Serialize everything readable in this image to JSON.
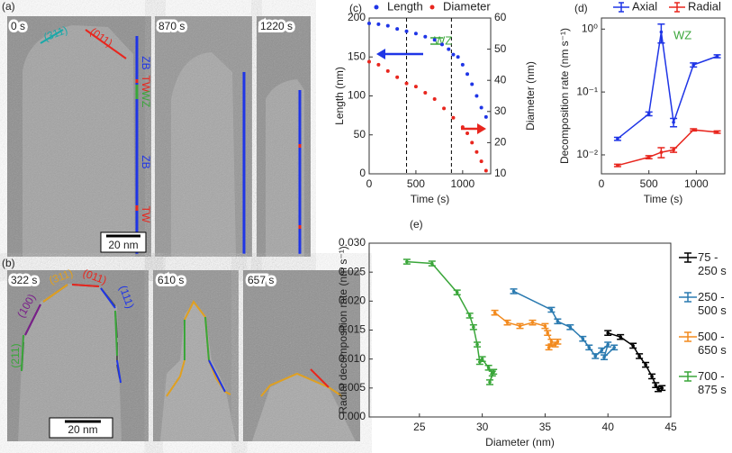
{
  "images": {
    "panels": [
      "(a)",
      "(b)"
    ],
    "frames": [
      "0 s",
      "870 s",
      "1220 s",
      "322 s",
      "610 s",
      "657 s"
    ],
    "scale_bars": [
      "20 nm",
      "20 nm"
    ],
    "facets_a": [
      "(311)",
      "(011)"
    ],
    "facets_b": [
      "(100)",
      "(311)",
      "(011)",
      "(111)",
      "(211)"
    ],
    "phases": [
      "ZB",
      "TW",
      "WZ",
      "ZB",
      "TW"
    ]
  },
  "chart_data": [
    {
      "type": "scatter",
      "label": "(c)",
      "xlabel": "Time (s)",
      "ylabel": "Length (nm)",
      "y2label": "Diameter (nm)",
      "xlim": [
        0,
        1300
      ],
      "xticks": [
        0,
        500,
        1000
      ],
      "ylim": [
        0,
        200
      ],
      "yticks": [
        0,
        50,
        100,
        150,
        200
      ],
      "y2lim": [
        10,
        60
      ],
      "y2ticks": [
        10,
        20,
        30,
        40,
        50,
        60
      ],
      "vlines": [
        400,
        880
      ],
      "annotations": [
        "WZ"
      ],
      "legend": "top",
      "series": [
        {
          "name": "Length",
          "color": "#1f35e6",
          "x": [
            0,
            100,
            200,
            300,
            400,
            500,
            600,
            700,
            780,
            850,
            900,
            950,
            1000,
            1050,
            1100,
            1150,
            1200,
            1250
          ],
          "values": [
            193,
            192,
            190,
            186,
            183,
            180,
            176,
            172,
            166,
            160,
            153,
            150,
            140,
            128,
            115,
            100,
            85,
            73
          ]
        },
        {
          "name": "Diameter",
          "color": "#e8261e",
          "axis": "y2",
          "x": [
            0,
            100,
            200,
            300,
            400,
            500,
            600,
            700,
            800,
            900,
            1000,
            1050,
            1100,
            1150,
            1200,
            1250
          ],
          "values": [
            46,
            45,
            43,
            41,
            39,
            38,
            36,
            34,
            31,
            28,
            25,
            23,
            20,
            17,
            14,
            11
          ]
        }
      ]
    },
    {
      "type": "line",
      "label": "(d)",
      "xlabel": "Time (s)",
      "ylabel": "Decomposition rate (nm s⁻¹)",
      "log": true,
      "xlim": [
        0,
        1300
      ],
      "xticks": [
        0,
        500,
        1000
      ],
      "ylim": [
        0.005,
        1.5
      ],
      "yticks": [
        {
          "value": 0.01,
          "label": "10⁻²"
        },
        {
          "value": 0.1,
          "label": "10⁻¹"
        },
        {
          "value": 1,
          "label": "10⁰"
        }
      ],
      "annotations": [
        "WZ"
      ],
      "legend": "top",
      "series": [
        {
          "name": "Axial",
          "color": "#1f35e6",
          "x": [
            170,
            500,
            630,
            760,
            970,
            1220
          ],
          "values": [
            0.018,
            0.045,
            0.9,
            0.033,
            0.27,
            0.37
          ],
          "errors": [
            0.001,
            0.003,
            0.3,
            0.005,
            0.02,
            0.02
          ]
        },
        {
          "name": "Radial",
          "color": "#e8261e",
          "x": [
            170,
            500,
            630,
            760,
            970,
            1220
          ],
          "values": [
            0.0068,
            0.0092,
            0.011,
            0.012,
            0.025,
            0.023
          ],
          "errors": [
            0.0003,
            0.0005,
            0.002,
            0.001,
            0.001,
            0.001
          ]
        }
      ]
    },
    {
      "type": "line",
      "label": "(e)",
      "xlabel": "Diameter (nm)",
      "ylabel": "Radial decomposition rate (nm s⁻¹)",
      "xlim": [
        21,
        45
      ],
      "xticks": [
        25,
        30,
        35,
        40,
        45
      ],
      "ylim": [
        0,
        0.03
      ],
      "yticks": [
        {
          "value": 0,
          "label": "0.000"
        },
        {
          "value": 0.005,
          "label": "0.005"
        },
        {
          "value": 0.01,
          "label": "0.010"
        },
        {
          "value": 0.015,
          "label": "0.015"
        },
        {
          "value": 0.02,
          "label": "0.020"
        },
        {
          "value": 0.025,
          "label": "0.025"
        },
        {
          "value": 0.03,
          "label": "0.030"
        }
      ],
      "legend": "right",
      "series": [
        {
          "name": "75 - 250 s",
          "color": "#000000",
          "x": [
            40,
            41,
            42,
            42.5,
            43,
            43.5,
            43.8,
            44,
            44.3
          ],
          "values": [
            0.0145,
            0.0138,
            0.0123,
            0.0105,
            0.009,
            0.007,
            0.0055,
            0.0048,
            0.005
          ],
          "errors": [
            0.0004,
            0.0004,
            0.0004,
            0.0004,
            0.0004,
            0.0004,
            0.0004,
            0.0004,
            0.0004
          ]
        },
        {
          "name": "250 - 500 s",
          "color": "#2a7ab0",
          "x": [
            32.5,
            35.5,
            36,
            37,
            38,
            38.5,
            39,
            39.5,
            40,
            39.7,
            40.5
          ],
          "values": [
            0.0217,
            0.0185,
            0.0165,
            0.0155,
            0.0135,
            0.012,
            0.0105,
            0.0115,
            0.0125,
            0.0103,
            0.012
          ],
          "errors": [
            0.0004,
            0.0004,
            0.0004,
            0.0004,
            0.0004,
            0.0004,
            0.0004,
            0.0004,
            0.0004,
            0.0004,
            0.0004
          ]
        },
        {
          "name": "500 - 650 s",
          "color": "#f28a1e",
          "x": [
            31,
            32,
            33,
            34,
            35,
            35.2,
            35.5,
            35.3,
            35.8,
            36
          ],
          "values": [
            0.018,
            0.0163,
            0.0157,
            0.0163,
            0.0157,
            0.0145,
            0.013,
            0.012,
            0.0125,
            0.013
          ],
          "errors": [
            0.0004,
            0.0004,
            0.0004,
            0.0004,
            0.0004,
            0.0004,
            0.0004,
            0.0004,
            0.0004,
            0.0004
          ]
        },
        {
          "name": "700 - 875 s",
          "color": "#3aa63a",
          "x": [
            24,
            26,
            28,
            29,
            29.3,
            29.6,
            29.8,
            30,
            30.5,
            30.8,
            30.6,
            30.9
          ],
          "values": [
            0.0268,
            0.0265,
            0.0215,
            0.0175,
            0.0155,
            0.0125,
            0.0095,
            0.01,
            0.0085,
            0.0075,
            0.006,
            0.0078
          ],
          "errors": [
            0.0004,
            0.0004,
            0.0004,
            0.0004,
            0.0004,
            0.0004,
            0.0004,
            0.0004,
            0.0004,
            0.0004,
            0.0004,
            0.0004
          ]
        }
      ]
    }
  ]
}
